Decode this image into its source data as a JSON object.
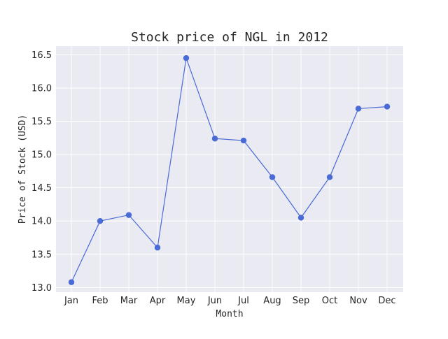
{
  "chart_data": {
    "type": "line",
    "title": "Stock price of NGL in 2012",
    "xlabel": "Month",
    "ylabel": "Price of Stock (USD)",
    "categories": [
      "Jan",
      "Feb",
      "Mar",
      "Apr",
      "May",
      "Jun",
      "Jul",
      "Aug",
      "Sep",
      "Oct",
      "Nov",
      "Dec"
    ],
    "series": [
      {
        "values": [
          13.08,
          14.0,
          14.09,
          13.6,
          16.45,
          15.24,
          15.21,
          14.66,
          14.05,
          14.66,
          15.69,
          15.72
        ]
      }
    ],
    "ylim": [
      12.93,
      16.63
    ],
    "yticks": [
      13.0,
      13.5,
      14.0,
      14.5,
      15.0,
      15.5,
      16.0,
      16.5
    ],
    "ytick_labels": [
      "13.0",
      "13.5",
      "14.0",
      "14.5",
      "15.0",
      "15.5",
      "16.0",
      "16.5"
    ],
    "grid": true,
    "colors": {
      "line": "#4a6ad6",
      "marker": "#4a6ad6",
      "plot_background": "#eaeaf2",
      "grid": "#ffffff"
    }
  }
}
